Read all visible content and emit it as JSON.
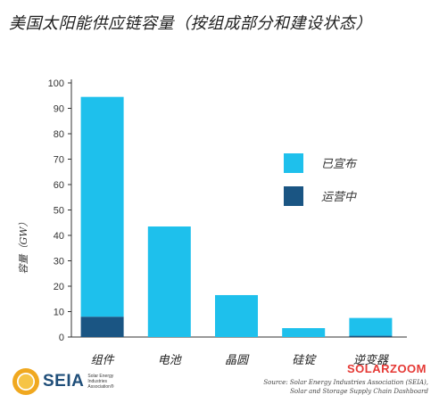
{
  "title": "美国太阳能供应链容量（按组成部分和建设状态）",
  "chart_data": {
    "type": "bar",
    "stacked": true,
    "categories": [
      "组件",
      "电池",
      "晶圆",
      "硅锭",
      "逆变器"
    ],
    "series": [
      {
        "name": "运营中",
        "values": [
          8,
          0,
          0,
          0,
          0.5
        ],
        "color": "#1a5583"
      },
      {
        "name": "已宣布",
        "values": [
          86.5,
          43.5,
          16.5,
          3.5,
          7
        ],
        "color": "#1ec0ec"
      }
    ],
    "xlabel": "",
    "ylabel": "容量（GW）",
    "ylim": [
      0,
      100
    ],
    "yticks": [
      0,
      10,
      20,
      30,
      40,
      50,
      60,
      70,
      80,
      90,
      100
    ],
    "grid": false,
    "legend_placement": "right"
  },
  "logo": {
    "word": "SEIA",
    "sub": "Solar Energy Industries Association®"
  },
  "watermark": "SOLARZOOM",
  "source": {
    "line1": "Source: Solar Energy Industries Association (SEIA),",
    "line2": "Solar and Storage Supply Chain Dashboard"
  }
}
